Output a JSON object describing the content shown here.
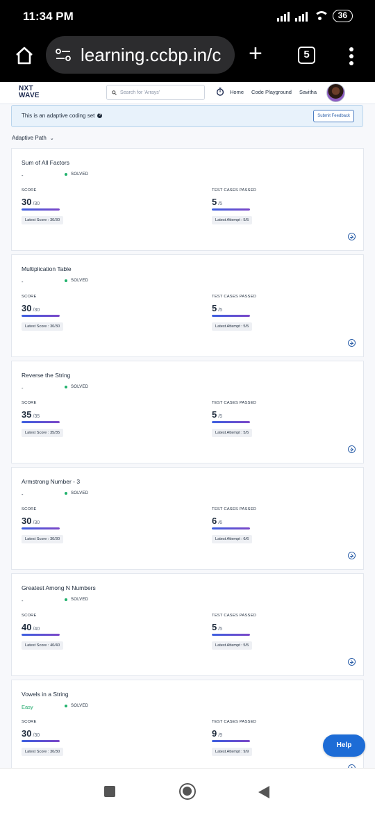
{
  "status_bar": {
    "time": "11:34 PM",
    "battery": "36"
  },
  "browser": {
    "url": "learning.ccbp.in/c",
    "tab_count": "5"
  },
  "site_header": {
    "logo_line1": "NXT",
    "logo_line2": "WAVE",
    "search_placeholder": "Search for 'Arrays'",
    "nav": {
      "home": "Home",
      "playground": "Code Playground",
      "user": "Savitha"
    }
  },
  "banner": {
    "text": "This is an adaptive coding set",
    "feedback_button": "Submit Feedback"
  },
  "path_selector": "Adaptive Path",
  "labels": {
    "score": "SCORE",
    "tests": "TEST CASES PASSED"
  },
  "cards": [
    {
      "title": "Sum of All Factors",
      "difficulty": "-",
      "status": "SOLVED",
      "score": "30",
      "score_max": "/30",
      "score_frac": 1.0,
      "tests": "5",
      "tests_max": "/5",
      "tests_frac": 1.0,
      "latest_score": "Latest Score : 30/30",
      "latest_attempt": "Latest Attempt : 5/5"
    },
    {
      "title": "Multiplication Table",
      "difficulty": "-",
      "status": "SOLVED",
      "score": "30",
      "score_max": "/30",
      "score_frac": 1.0,
      "tests": "5",
      "tests_max": "/5",
      "tests_frac": 1.0,
      "latest_score": "Latest Score : 30/30",
      "latest_attempt": "Latest Attempt : 5/5"
    },
    {
      "title": "Reverse the String",
      "difficulty": "-",
      "status": "SOLVED",
      "score": "35",
      "score_max": "/35",
      "score_frac": 1.0,
      "tests": "5",
      "tests_max": "/5",
      "tests_frac": 1.0,
      "latest_score": "Latest Score : 35/35",
      "latest_attempt": "Latest Attempt : 5/5"
    },
    {
      "title": "Armstrong Number - 3",
      "difficulty": "-",
      "status": "SOLVED",
      "score": "30",
      "score_max": "/30",
      "score_frac": 1.0,
      "tests": "6",
      "tests_max": "/6",
      "tests_frac": 1.0,
      "latest_score": "Latest Score : 30/30",
      "latest_attempt": "Latest Attempt : 6/6"
    },
    {
      "title": "Greatest Among N Numbers",
      "difficulty": "-",
      "status": "SOLVED",
      "score": "40",
      "score_max": "/40",
      "score_frac": 1.0,
      "tests": "5",
      "tests_max": "/5",
      "tests_frac": 1.0,
      "latest_score": "Latest Score : 40/40",
      "latest_attempt": "Latest Attempt : 5/5"
    },
    {
      "title": "Vowels in a String",
      "difficulty": "Easy",
      "status": "SOLVED",
      "score": "30",
      "score_max": "/30",
      "score_frac": 1.0,
      "tests": "9",
      "tests_max": "/9",
      "tests_frac": 1.0,
      "latest_score": "Latest Score : 30/30",
      "latest_attempt": "Latest Attempt : 9/9"
    }
  ],
  "help_button": "Help",
  "colors": {
    "solved": "#20b26c",
    "easy": "#1ea86a",
    "help": "#1d6cd6"
  }
}
